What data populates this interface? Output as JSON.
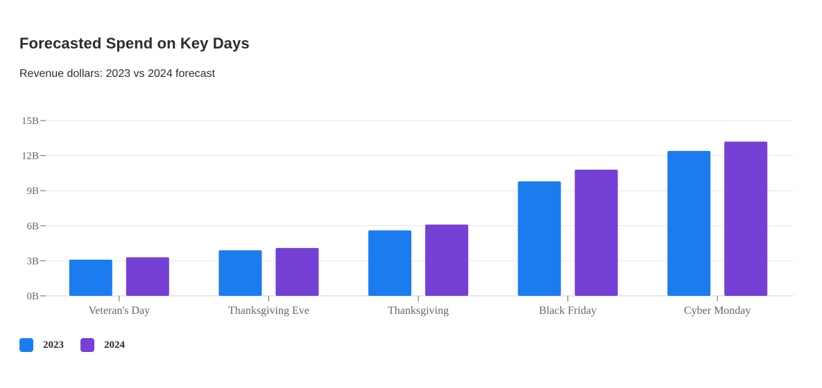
{
  "chart_data": {
    "type": "bar",
    "title": "Forecasted Spend on Key Days",
    "subtitle": "Revenue dollars: 2023 vs 2024 forecast",
    "xlabel": "",
    "ylabel": "",
    "categories": [
      "Veteran's Day",
      "Thanksgiving Eve",
      "Thanksgiving",
      "Black Friday",
      "Cyber Monday"
    ],
    "series": [
      {
        "name": "2023",
        "color": "#1b7cf0",
        "values": [
          3.1,
          3.9,
          5.6,
          9.8,
          12.4
        ]
      },
      {
        "name": "2024",
        "color": "#7540d5",
        "values": [
          3.3,
          4.1,
          6.1,
          10.8,
          13.2
        ]
      }
    ],
    "ylim": [
      0,
      15
    ],
    "yticks": [
      0,
      3,
      6,
      9,
      12,
      15
    ],
    "ytick_labels": [
      "0B",
      "3B",
      "6B",
      "9B",
      "12B",
      "15B"
    ],
    "grid": true,
    "legend_position": "bottom-left"
  }
}
